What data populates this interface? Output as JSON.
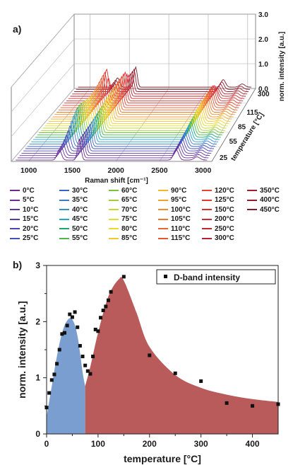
{
  "chart_data": [
    {
      "panel": "a)",
      "type": "line",
      "xlabel": "Raman shift [cm⁻¹]",
      "ylabel": "norm. intensity [a.u.]",
      "zlabel": "temperature [°C]",
      "xticks": [
        "1000",
        "1500",
        "2000",
        "2500",
        "3000"
      ],
      "yticks": [
        "0.0",
        "1.0",
        "2.0",
        "3.0"
      ],
      "zticks": [
        "25",
        "55",
        "85",
        "115",
        "300"
      ],
      "xlim": [
        800,
        3100
      ],
      "ylim": [
        0,
        3
      ],
      "grid": true,
      "series": [
        {
          "name": "0°C",
          "color": "#6b2a8c"
        },
        {
          "name": "5°C",
          "color": "#6a2e95"
        },
        {
          "name": "10°C",
          "color": "#62379f"
        },
        {
          "name": "15°C",
          "color": "#5a3aa8"
        },
        {
          "name": "20°C",
          "color": "#4d45b3"
        },
        {
          "name": "25°C",
          "color": "#3f52bd"
        },
        {
          "name": "30°C",
          "color": "#3a64c4"
        },
        {
          "name": "35°C",
          "color": "#3a7ccb"
        },
        {
          "name": "40°C",
          "color": "#2f97cf"
        },
        {
          "name": "45°C",
          "color": "#1fa9c4"
        },
        {
          "name": "50°C",
          "color": "#1aa86a"
        },
        {
          "name": "55°C",
          "color": "#4cb94a"
        },
        {
          "name": "60°C",
          "color": "#79c43a"
        },
        {
          "name": "65°C",
          "color": "#a3cf34"
        },
        {
          "name": "70°C",
          "color": "#c7d92f"
        },
        {
          "name": "75°C",
          "color": "#e2de2e"
        },
        {
          "name": "80°C",
          "color": "#f2d82c"
        },
        {
          "name": "85°C",
          "color": "#f6c72b"
        },
        {
          "name": "90°C",
          "color": "#f6b52a"
        },
        {
          "name": "95°C",
          "color": "#f4a12a"
        },
        {
          "name": "100°C",
          "color": "#f28c2a"
        },
        {
          "name": "105°C",
          "color": "#ef782b"
        },
        {
          "name": "110°C",
          "color": "#ec652c"
        },
        {
          "name": "115°C",
          "color": "#e9552d"
        },
        {
          "name": "120°C",
          "color": "#e5462e"
        },
        {
          "name": "125°C",
          "color": "#e13a2f"
        },
        {
          "name": "150°C",
          "color": "#dc3030"
        },
        {
          "name": "200°C",
          "color": "#d02a2f"
        },
        {
          "name": "250°C",
          "color": "#c2262e"
        },
        {
          "name": "300°C",
          "color": "#b3222d"
        },
        {
          "name": "350°C",
          "color": "#a31f2c"
        },
        {
          "name": "400°C",
          "color": "#921c2b"
        },
        {
          "name": "450°C",
          "color": "#7e1a29"
        }
      ]
    },
    {
      "panel": "b)",
      "type": "scatter",
      "xlabel": "temperature [°C]",
      "ylabel": "norm. intensity [a.u.]",
      "xticks": [
        "0",
        "100",
        "200",
        "300",
        "400"
      ],
      "yticks": [
        "0",
        "1",
        "2",
        "3"
      ],
      "xlim": [
        0,
        450
      ],
      "ylim": [
        0,
        3
      ],
      "legend": "top-right",
      "series": [
        {
          "name": "D-band intensity",
          "color": "#111111",
          "x": [
            0,
            5,
            10,
            15,
            20,
            25,
            30,
            35,
            40,
            45,
            50,
            55,
            60,
            65,
            70,
            75,
            80,
            85,
            90,
            95,
            100,
            105,
            110,
            115,
            120,
            125,
            150,
            200,
            250,
            300,
            350,
            400,
            450
          ],
          "y": [
            0.47,
            0.73,
            0.96,
            1.06,
            1.25,
            1.5,
            1.78,
            1.8,
            1.93,
            2.13,
            2.08,
            2.17,
            1.9,
            1.57,
            1.38,
            1.22,
            1.12,
            1.07,
            1.38,
            1.86,
            1.83,
            2.07,
            2.2,
            2.27,
            2.38,
            2.53,
            2.8,
            1.4,
            1.08,
            0.94,
            0.55,
            0.5,
            0.53
          ]
        }
      ],
      "fill_regions": [
        {
          "color": "#7b9ed1",
          "x": [
            0,
            10,
            20,
            30,
            40,
            50,
            60,
            70,
            75
          ],
          "y": [
            0.3,
            0.85,
            1.38,
            1.8,
            2.02,
            2.04,
            1.75,
            1.1,
            0.85
          ]
        },
        {
          "color": "#b95b5b",
          "x": [
            75,
            85,
            100,
            120,
            140,
            150,
            175,
            200,
            250,
            300,
            350,
            400,
            450
          ],
          "y": [
            0.85,
            1.2,
            1.8,
            2.45,
            2.75,
            2.73,
            2.15,
            1.55,
            1.05,
            0.82,
            0.7,
            0.62,
            0.57
          ]
        }
      ]
    }
  ]
}
